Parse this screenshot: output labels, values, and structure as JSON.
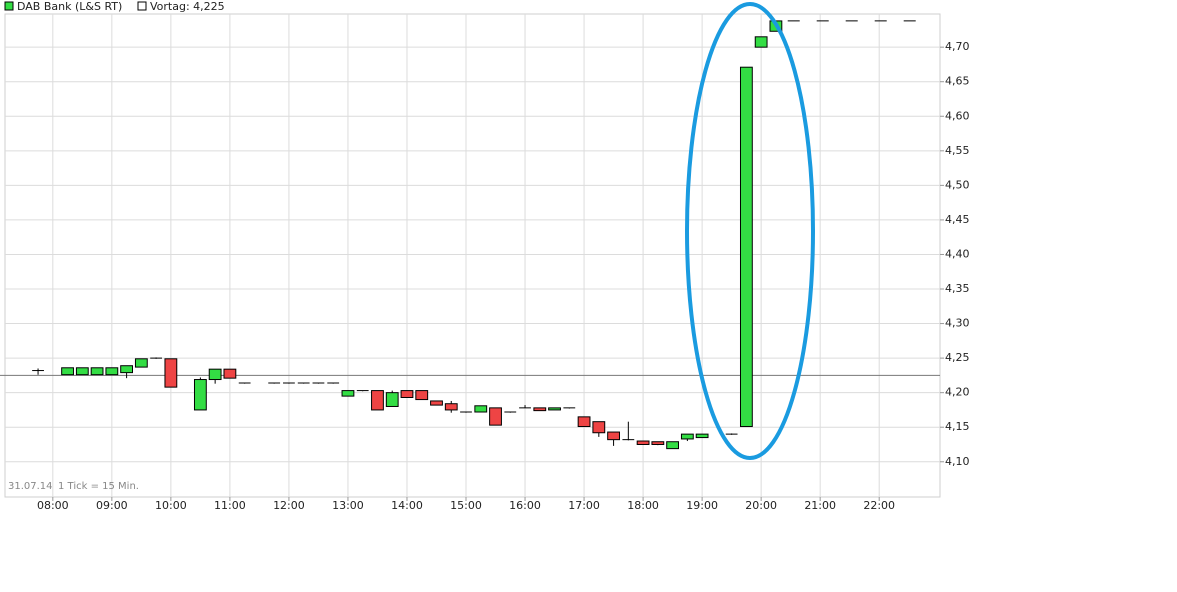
{
  "chart_data": {
    "type": "candlestick",
    "series": [
      {
        "name": "DAB Bank (L&S RT)",
        "up_color": "#33dd44",
        "down_color": "#ee4444",
        "x": [
          7.75,
          8.25,
          8.5,
          8.75,
          9.0,
          9.25,
          9.5,
          9.75,
          10.0,
          10.5,
          10.75,
          11.0,
          11.25,
          11.75,
          12.0,
          12.25,
          12.5,
          12.75,
          13.0,
          13.25,
          13.5,
          13.75,
          14.0,
          14.25,
          14.5,
          14.75,
          15.0,
          15.25,
          15.5,
          15.75,
          16.0,
          16.25,
          16.5,
          16.75,
          17.0,
          17.25,
          17.5,
          17.75,
          18.0,
          18.25,
          18.5,
          18.75,
          19.0,
          19.5,
          19.75,
          20.0,
          20.25
        ],
        "open": [
          4.232,
          4.226,
          4.226,
          4.226,
          4.226,
          4.229,
          4.237,
          4.25,
          4.249,
          4.175,
          4.219,
          4.234,
          4.214,
          4.214,
          4.214,
          4.214,
          4.214,
          4.214,
          4.195,
          4.203,
          4.203,
          4.18,
          4.203,
          4.203,
          4.188,
          4.184,
          4.172,
          4.172,
          4.178,
          4.172,
          4.178,
          4.178,
          4.175,
          4.178,
          4.165,
          4.158,
          4.143,
          4.132,
          4.13,
          4.129,
          4.119,
          4.133,
          4.135,
          4.14,
          4.151,
          4.7,
          4.723
        ],
        "high": [
          4.235,
          4.236,
          4.236,
          4.236,
          4.236,
          4.239,
          4.249,
          4.251,
          4.249,
          4.222,
          4.234,
          4.234,
          4.214,
          4.214,
          4.214,
          4.214,
          4.214,
          4.214,
          4.203,
          4.203,
          4.203,
          4.203,
          4.203,
          4.203,
          4.188,
          4.188,
          4.172,
          4.181,
          4.178,
          4.172,
          4.182,
          4.178,
          4.178,
          4.178,
          4.165,
          4.158,
          4.143,
          4.158,
          4.13,
          4.129,
          4.129,
          4.14,
          4.14,
          4.141,
          4.671,
          4.715,
          4.738
        ],
        "low": [
          4.226,
          4.226,
          4.226,
          4.226,
          4.226,
          4.221,
          4.237,
          4.249,
          4.208,
          4.175,
          4.213,
          4.221,
          4.213,
          4.213,
          4.213,
          4.213,
          4.213,
          4.213,
          4.195,
          4.202,
          4.175,
          4.18,
          4.193,
          4.19,
          4.182,
          4.171,
          4.171,
          4.172,
          4.153,
          4.171,
          4.178,
          4.174,
          4.175,
          4.177,
          4.151,
          4.136,
          4.123,
          4.131,
          4.125,
          4.124,
          4.119,
          4.13,
          4.135,
          4.139,
          4.151,
          4.7,
          4.723
        ],
        "close": [
          4.232,
          4.236,
          4.236,
          4.236,
          4.236,
          4.239,
          4.249,
          4.25,
          4.208,
          4.219,
          4.234,
          4.221,
          4.214,
          4.214,
          4.214,
          4.214,
          4.214,
          4.214,
          4.203,
          4.203,
          4.175,
          4.2,
          4.193,
          4.19,
          4.182,
          4.175,
          4.172,
          4.181,
          4.153,
          4.172,
          4.178,
          4.174,
          4.178,
          4.178,
          4.151,
          4.142,
          4.132,
          4.132,
          4.125,
          4.125,
          4.129,
          4.14,
          4.14,
          4.14,
          4.671,
          4.715,
          4.738
        ]
      }
    ],
    "reference_line": {
      "label": "Vortag: 4,225",
      "value": 4.225,
      "color": "#777777"
    },
    "date_label": "31.07.14",
    "interval_label": "1 Tick = 15 Min.",
    "xlim": [
      7.19,
      23.03
    ],
    "xticks": [
      {
        "value": 8,
        "label": "08:00"
      },
      {
        "value": 9,
        "label": "09:00"
      },
      {
        "value": 10,
        "label": "10:00"
      },
      {
        "value": 11,
        "label": "11:00"
      },
      {
        "value": 12,
        "label": "12:00"
      },
      {
        "value": 13,
        "label": "13:00"
      },
      {
        "value": 14,
        "label": "14:00"
      },
      {
        "value": 15,
        "label": "15:00"
      },
      {
        "value": 16,
        "label": "16:00"
      },
      {
        "value": 17,
        "label": "17:00"
      },
      {
        "value": 18,
        "label": "18:00"
      },
      {
        "value": 19,
        "label": "19:00"
      },
      {
        "value": 20,
        "label": "20:00"
      },
      {
        "value": 21,
        "label": "21:00"
      },
      {
        "value": 22,
        "label": "22:00"
      }
    ],
    "ylim": [
      4.049,
      4.748
    ],
    "yticks": [
      {
        "value": 4.1,
        "label": "4,10"
      },
      {
        "value": 4.15,
        "label": "4,15"
      },
      {
        "value": 4.2,
        "label": "4,20"
      },
      {
        "value": 4.25,
        "label": "4,25"
      },
      {
        "value": 4.3,
        "label": "4,30"
      },
      {
        "value": 4.35,
        "label": "4,35"
      },
      {
        "value": 4.4,
        "label": "4,40"
      },
      {
        "value": 4.45,
        "label": "4,45"
      },
      {
        "value": 4.5,
        "label": "4,50"
      },
      {
        "value": 4.55,
        "label": "4,55"
      },
      {
        "value": 4.6,
        "label": "4,60"
      },
      {
        "value": 4.65,
        "label": "4,65"
      },
      {
        "value": 4.7,
        "label": "4,70"
      }
    ],
    "grid": true
  }
}
